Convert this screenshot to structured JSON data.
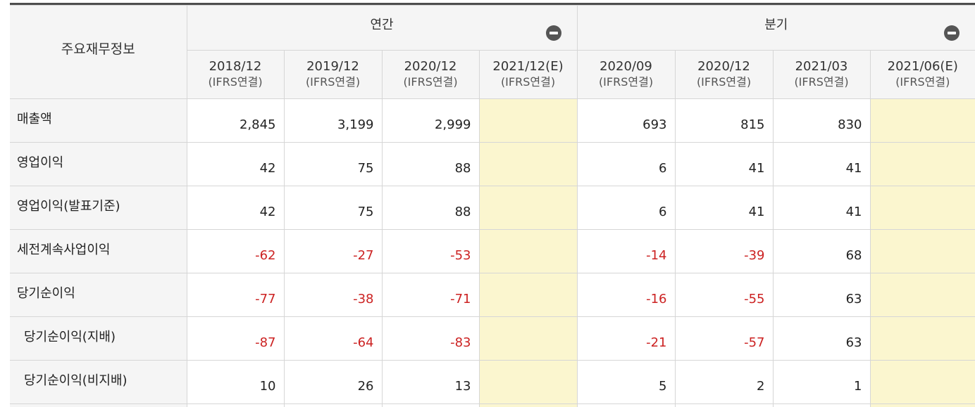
{
  "table": {
    "corner_label": "주요재무정보",
    "groups": [
      {
        "label": "연간",
        "toggle_icon": "minus-circle-icon"
      },
      {
        "label": "분기",
        "toggle_icon": "minus-circle-icon"
      }
    ],
    "columns": [
      {
        "period": "2018/12",
        "basis": "(IFRS연결)"
      },
      {
        "period": "2019/12",
        "basis": "(IFRS연결)"
      },
      {
        "period": "2020/12",
        "basis": "(IFRS연결)"
      },
      {
        "period": "2021/12(E)",
        "basis": "(IFRS연결)"
      },
      {
        "period": "2020/09",
        "basis": "(IFRS연결)"
      },
      {
        "period": "2020/12",
        "basis": "(IFRS연결)"
      },
      {
        "period": "2021/03",
        "basis": "(IFRS연결)"
      },
      {
        "period": "2021/06(E)",
        "basis": "(IFRS연결)"
      }
    ],
    "rows": [
      {
        "label": "매출액",
        "values": [
          "2,845",
          "3,199",
          "2,999",
          "",
          "693",
          "815",
          "830",
          ""
        ]
      },
      {
        "label": "영업이익",
        "values": [
          "42",
          "75",
          "88",
          "",
          "6",
          "41",
          "41",
          ""
        ]
      },
      {
        "label": "영업이익(발표기준)",
        "values": [
          "42",
          "75",
          "88",
          "",
          "6",
          "41",
          "41",
          ""
        ]
      },
      {
        "label": "세전계속사업이익",
        "values": [
          "-62",
          "-27",
          "-53",
          "",
          "-14",
          "-39",
          "68",
          ""
        ]
      },
      {
        "label": "당기순이익",
        "values": [
          "-77",
          "-38",
          "-71",
          "",
          "-16",
          "-55",
          "63",
          ""
        ]
      },
      {
        "label": "당기순이익(지배)",
        "values": [
          "-87",
          "-64",
          "-83",
          "",
          "-21",
          "-57",
          "63",
          ""
        ]
      },
      {
        "label": "당기순이익(비지배)",
        "values": [
          "10",
          "26",
          "13",
          "",
          "5",
          "2",
          "1",
          ""
        ]
      }
    ],
    "colors": {
      "negative": "#cc2222",
      "estimate_fill": "#fbf6cf",
      "header_fill": "#f5f5f5",
      "top_border": "#4d4d4d"
    }
  }
}
